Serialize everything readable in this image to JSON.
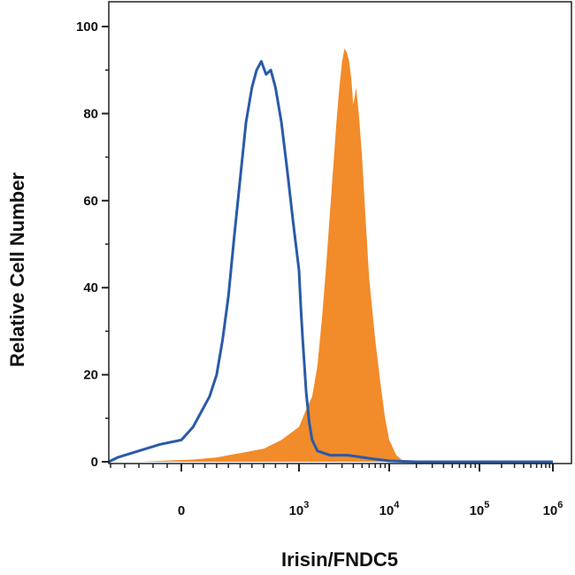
{
  "chart_data": {
    "type": "area",
    "title": "",
    "xlabel": "Irisin/FNDC5",
    "ylabel": "Relative Cell Number",
    "x_scale": "biexponential (log above 10^3)",
    "ylim": [
      0,
      100
    ],
    "y_ticks": [
      "0",
      "20",
      "40",
      "60",
      "80",
      "100"
    ],
    "x_ticks": [
      {
        "base": "0",
        "exp": ""
      },
      {
        "base": "10",
        "exp": "3"
      },
      {
        "base": "10",
        "exp": "4"
      },
      {
        "base": "10",
        "exp": "5"
      },
      {
        "base": "10",
        "exp": "6"
      }
    ],
    "grid": false,
    "legend": "none",
    "series": [
      {
        "style": "outline",
        "color": "#2a5aa8",
        "points": [
          [
            -700,
            0
          ],
          [
            -450,
            1
          ],
          [
            -300,
            2.5
          ],
          [
            -150,
            4
          ],
          [
            0,
            5
          ],
          [
            100,
            8
          ],
          [
            180,
            12
          ],
          [
            240,
            15
          ],
          [
            300,
            20
          ],
          [
            350,
            28
          ],
          [
            400,
            38
          ],
          [
            450,
            52
          ],
          [
            500,
            65
          ],
          [
            550,
            78
          ],
          [
            600,
            86
          ],
          [
            640,
            90
          ],
          [
            680,
            92
          ],
          [
            720,
            89
          ],
          [
            760,
            90
          ],
          [
            800,
            86
          ],
          [
            850,
            78
          ],
          [
            900,
            67
          ],
          [
            950,
            55
          ],
          [
            1000,
            44
          ],
          [
            1050,
            35
          ],
          [
            1100,
            28
          ],
          [
            1150,
            22
          ],
          [
            1200,
            16
          ],
          [
            1300,
            9
          ],
          [
            1400,
            5
          ],
          [
            1600,
            2.5
          ],
          [
            2200,
            1.5
          ],
          [
            3500,
            1.5
          ],
          [
            6000,
            0.8
          ],
          [
            10000,
            0.2
          ],
          [
            20000,
            0
          ],
          [
            1000000,
            0
          ]
        ]
      },
      {
        "style": "filled",
        "color": "#f28b2a",
        "points": [
          [
            -300,
            0
          ],
          [
            100,
            0.5
          ],
          [
            300,
            1
          ],
          [
            500,
            2
          ],
          [
            700,
            3
          ],
          [
            850,
            5
          ],
          [
            1000,
            8
          ],
          [
            1200,
            12
          ],
          [
            1400,
            15
          ],
          [
            1600,
            22
          ],
          [
            1800,
            33
          ],
          [
            2000,
            45
          ],
          [
            2200,
            57
          ],
          [
            2400,
            68
          ],
          [
            2600,
            78
          ],
          [
            2800,
            86
          ],
          [
            3000,
            92
          ],
          [
            3200,
            95
          ],
          [
            3400,
            94
          ],
          [
            3600,
            92
          ],
          [
            3800,
            88
          ],
          [
            4000,
            82
          ],
          [
            4300,
            86
          ],
          [
            4600,
            80
          ],
          [
            5000,
            70
          ],
          [
            5500,
            55
          ],
          [
            6000,
            42
          ],
          [
            7000,
            28
          ],
          [
            8000,
            18
          ],
          [
            9000,
            10
          ],
          [
            10000,
            5
          ],
          [
            12000,
            1.5
          ],
          [
            14000,
            0.3
          ],
          [
            16000,
            0
          ],
          [
            1000000,
            0
          ]
        ]
      }
    ]
  }
}
